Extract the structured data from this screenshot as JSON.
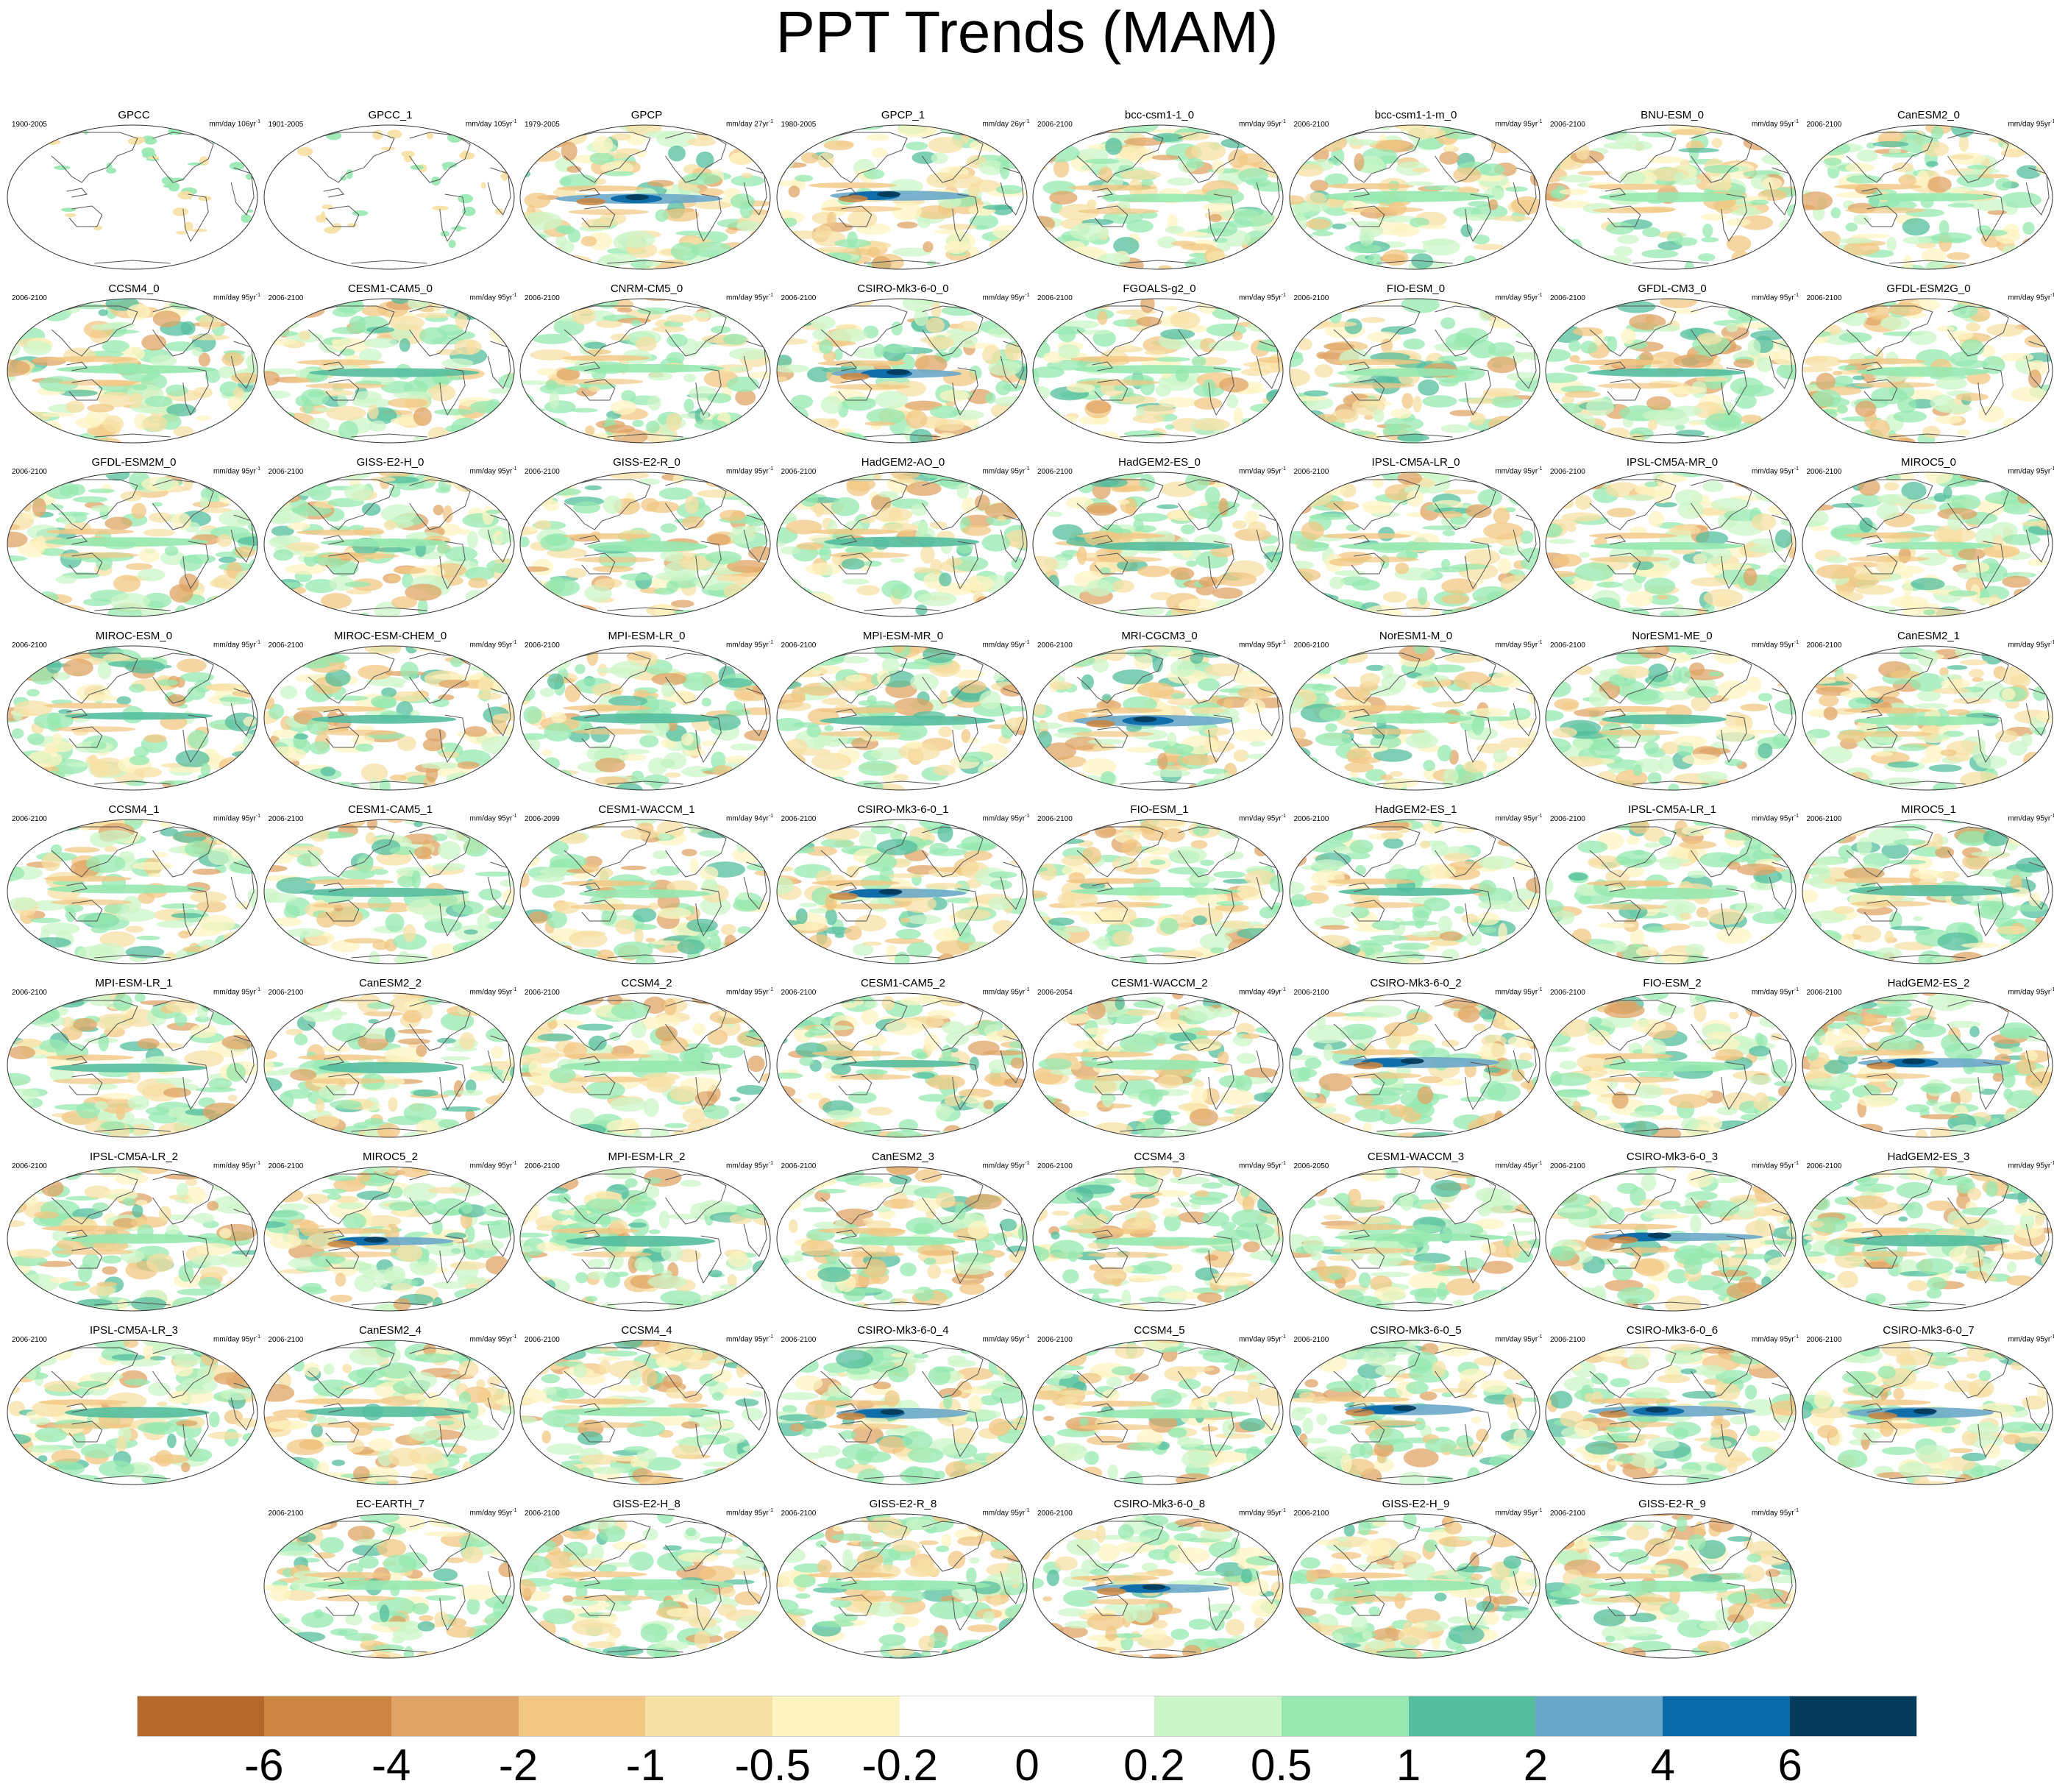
{
  "title": "PPT Trends (MAM)",
  "chart_data": {
    "type": "heatmap",
    "title": "PPT Trends (MAM)",
    "colorbar": {
      "ticks": [
        "-6",
        "-4",
        "-2",
        "-1",
        "-0.5",
        "-0.2",
        "0",
        "0.2",
        "0.5",
        "1",
        "2",
        "4",
        "6"
      ],
      "colors": [
        "#b5682b",
        "#cb8540",
        "#dfa465",
        "#f2c783",
        "#f7e0a4",
        "#fdf4c2",
        "#ffffff",
        "#ffffff",
        "#ccf5c8",
        "#96e8b0",
        "#54be9e",
        "#6aa8c9",
        "#0a6aa8",
        "#043a5a"
      ]
    },
    "panels": [
      {
        "name": "GPCC",
        "period": "1900-2005",
        "units": "mm/day 106yr",
        "variant": "obs"
      },
      {
        "name": "GPCC_1",
        "period": "1901-2005",
        "units": "mm/day 105yr",
        "variant": "obs"
      },
      {
        "name": "GPCP",
        "period": "1979-2005",
        "units": "mm/day 27yr",
        "variant": "strong"
      },
      {
        "name": "GPCP_1",
        "period": "1980-2005",
        "units": "mm/day 26yr",
        "variant": "strong"
      },
      {
        "name": "bcc-csm1-1_0",
        "period": "2006-2100",
        "units": "mm/day 95yr",
        "variant": "model"
      },
      {
        "name": "bcc-csm1-1-m_0",
        "period": "2006-2100",
        "units": "mm/day 95yr",
        "variant": "model"
      },
      {
        "name": "BNU-ESM_0",
        "period": "2006-2100",
        "units": "mm/day 95yr",
        "variant": "model"
      },
      {
        "name": "CanESM2_0",
        "period": "2006-2100",
        "units": "mm/day 95yr",
        "variant": "model"
      },
      {
        "name": "CCSM4_0",
        "period": "2006-2100",
        "units": "mm/day 95yr",
        "variant": "model"
      },
      {
        "name": "CESM1-CAM5_0",
        "period": "2006-2100",
        "units": "mm/day 95yr",
        "variant": "band"
      },
      {
        "name": "CNRM-CM5_0",
        "period": "2006-2100",
        "units": "mm/day 95yr",
        "variant": "model"
      },
      {
        "name": "CSIRO-Mk3-6-0_0",
        "period": "2006-2100",
        "units": "mm/day 95yr",
        "variant": "strong"
      },
      {
        "name": "FGOALS-g2_0",
        "period": "2006-2100",
        "units": "mm/day 95yr",
        "variant": "model"
      },
      {
        "name": "FIO-ESM_0",
        "period": "2006-2100",
        "units": "mm/day 95yr",
        "variant": "model"
      },
      {
        "name": "GFDL-CM3_0",
        "period": "2006-2100",
        "units": "mm/day 95yr",
        "variant": "band"
      },
      {
        "name": "GFDL-ESM2G_0",
        "period": "2006-2100",
        "units": "mm/day 95yr",
        "variant": "model"
      },
      {
        "name": "GFDL-ESM2M_0",
        "period": "2006-2100",
        "units": "mm/day 95yr",
        "variant": "model"
      },
      {
        "name": "GISS-E2-H_0",
        "period": "2006-2100",
        "units": "mm/day 95yr",
        "variant": "model"
      },
      {
        "name": "GISS-E2-R_0",
        "period": "2006-2100",
        "units": "mm/day 95yr",
        "variant": "model"
      },
      {
        "name": "HadGEM2-AO_0",
        "period": "2006-2100",
        "units": "mm/day 95yr",
        "variant": "band"
      },
      {
        "name": "HadGEM2-ES_0",
        "period": "2006-2100",
        "units": "mm/day 95yr",
        "variant": "band"
      },
      {
        "name": "IPSL-CM5A-LR_0",
        "period": "2006-2100",
        "units": "mm/day 95yr",
        "variant": "model"
      },
      {
        "name": "IPSL-CM5A-MR_0",
        "period": "2006-2100",
        "units": "mm/day 95yr",
        "variant": "model"
      },
      {
        "name": "MIROC5_0",
        "period": "2006-2100",
        "units": "mm/day 95yr",
        "variant": "model"
      },
      {
        "name": "MIROC-ESM_0",
        "period": "2006-2100",
        "units": "mm/day 95yr",
        "variant": "band"
      },
      {
        "name": "MIROC-ESM-CHEM_0",
        "period": "2006-2100",
        "units": "mm/day 95yr",
        "variant": "band"
      },
      {
        "name": "MPI-ESM-LR_0",
        "period": "2006-2100",
        "units": "mm/day 95yr",
        "variant": "band"
      },
      {
        "name": "MPI-ESM-MR_0",
        "period": "2006-2100",
        "units": "mm/day 95yr",
        "variant": "band"
      },
      {
        "name": "MRI-CGCM3_0",
        "period": "2006-2100",
        "units": "mm/day 95yr",
        "variant": "strong"
      },
      {
        "name": "NorESM1-M_0",
        "period": "2006-2100",
        "units": "mm/day 95yr",
        "variant": "model"
      },
      {
        "name": "NorESM1-ME_0",
        "period": "2006-2100",
        "units": "mm/day 95yr",
        "variant": "band"
      },
      {
        "name": "CanESM2_1",
        "period": "2006-2100",
        "units": "mm/day 95yr",
        "variant": "model"
      },
      {
        "name": "CCSM4_1",
        "period": "2006-2100",
        "units": "mm/day 95yr",
        "variant": "model"
      },
      {
        "name": "CESM1-CAM5_1",
        "period": "2006-2100",
        "units": "mm/day 95yr",
        "variant": "band"
      },
      {
        "name": "CESM1-WACCM_1",
        "period": "2006-2099",
        "units": "mm/day 94yr",
        "variant": "model"
      },
      {
        "name": "CSIRO-Mk3-6-0_1",
        "period": "2006-2100",
        "units": "mm/day 95yr",
        "variant": "strong"
      },
      {
        "name": "FIO-ESM_1",
        "period": "2006-2100",
        "units": "mm/day 95yr",
        "variant": "model"
      },
      {
        "name": "HadGEM2-ES_1",
        "period": "2006-2100",
        "units": "mm/day 95yr",
        "variant": "band"
      },
      {
        "name": "IPSL-CM5A-LR_1",
        "period": "2006-2100",
        "units": "mm/day 95yr",
        "variant": "model"
      },
      {
        "name": "MIROC5_1",
        "period": "2006-2100",
        "units": "mm/day 95yr",
        "variant": "band"
      },
      {
        "name": "MPI-ESM-LR_1",
        "period": "2006-2100",
        "units": "mm/day 95yr",
        "variant": "band"
      },
      {
        "name": "CanESM2_2",
        "period": "2006-2100",
        "units": "mm/day 95yr",
        "variant": "band"
      },
      {
        "name": "CCSM4_2",
        "period": "2006-2100",
        "units": "mm/day 95yr",
        "variant": "model"
      },
      {
        "name": "CESM1-CAM5_2",
        "period": "2006-2100",
        "units": "mm/day 95yr",
        "variant": "band"
      },
      {
        "name": "CESM1-WACCM_2",
        "period": "2006-2054",
        "units": "mm/day 49yr",
        "variant": "model"
      },
      {
        "name": "CSIRO-Mk3-6-0_2",
        "period": "2006-2100",
        "units": "mm/day 95yr",
        "variant": "strong"
      },
      {
        "name": "FIO-ESM_2",
        "period": "2006-2100",
        "units": "mm/day 95yr",
        "variant": "model"
      },
      {
        "name": "HadGEM2-ES_2",
        "period": "2006-2100",
        "units": "mm/day 95yr",
        "variant": "strong"
      },
      {
        "name": "IPSL-CM5A-LR_2",
        "period": "2006-2100",
        "units": "mm/day 95yr",
        "variant": "model"
      },
      {
        "name": "MIROC5_2",
        "period": "2006-2100",
        "units": "mm/day 95yr",
        "variant": "strong"
      },
      {
        "name": "MPI-ESM-LR_2",
        "period": "2006-2100",
        "units": "mm/day 95yr",
        "variant": "band"
      },
      {
        "name": "CanESM2_3",
        "period": "2006-2100",
        "units": "mm/day 95yr",
        "variant": "model"
      },
      {
        "name": "CCSM4_3",
        "period": "2006-2100",
        "units": "mm/day 95yr",
        "variant": "model"
      },
      {
        "name": "CESM1-WACCM_3",
        "period": "2006-2050",
        "units": "mm/day 45yr",
        "variant": "model"
      },
      {
        "name": "CSIRO-Mk3-6-0_3",
        "period": "2006-2100",
        "units": "mm/day 95yr",
        "variant": "strong"
      },
      {
        "name": "HadGEM2-ES_3",
        "period": "2006-2100",
        "units": "mm/day 95yr",
        "variant": "band"
      },
      {
        "name": "IPSL-CM5A-LR_3",
        "period": "2006-2100",
        "units": "mm/day 95yr",
        "variant": "band"
      },
      {
        "name": "CanESM2_4",
        "period": "2006-2100",
        "units": "mm/day 95yr",
        "variant": "band"
      },
      {
        "name": "CCSM4_4",
        "period": "2006-2100",
        "units": "mm/day 95yr",
        "variant": "model"
      },
      {
        "name": "CSIRO-Mk3-6-0_4",
        "period": "2006-2100",
        "units": "mm/day 95yr",
        "variant": "strong"
      },
      {
        "name": "CCSM4_5",
        "period": "2006-2100",
        "units": "mm/day 95yr",
        "variant": "model"
      },
      {
        "name": "CSIRO-Mk3-6-0_5",
        "period": "2006-2100",
        "units": "mm/day 95yr",
        "variant": "strong"
      },
      {
        "name": "CSIRO-Mk3-6-0_6",
        "period": "2006-2100",
        "units": "mm/day 95yr",
        "variant": "strong"
      },
      {
        "name": "CSIRO-Mk3-6-0_7",
        "period": "2006-2100",
        "units": "mm/day 95yr",
        "variant": "strong"
      },
      {
        "name": "EC-EARTH_7",
        "period": "2006-2100",
        "units": "mm/day 95yr",
        "variant": "model"
      },
      {
        "name": "GISS-E2-H_8",
        "period": "2006-2100",
        "units": "mm/day 95yr",
        "variant": "model"
      },
      {
        "name": "GISS-E2-R_8",
        "period": "2006-2100",
        "units": "mm/day 95yr",
        "variant": "model"
      },
      {
        "name": "CSIRO-Mk3-6-0_8",
        "period": "2006-2100",
        "units": "mm/day 95yr",
        "variant": "strong"
      },
      {
        "name": "GISS-E2-H_9",
        "period": "2006-2100",
        "units": "mm/day 95yr",
        "variant": "model"
      },
      {
        "name": "GISS-E2-R_9",
        "period": "2006-2100",
        "units": "mm/day 95yr",
        "variant": "model"
      }
    ]
  }
}
